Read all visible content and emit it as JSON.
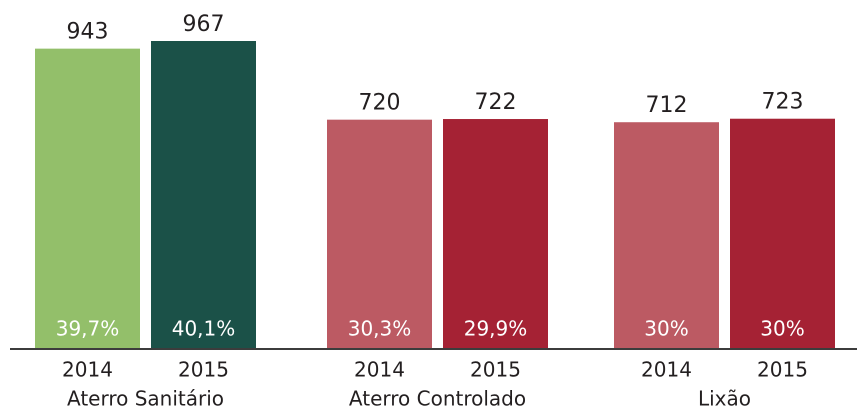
{
  "chart_data": {
    "type": "bar",
    "categories": [
      "Aterro Sanitário",
      "Aterro Controlado",
      "Lixão"
    ],
    "series": [
      {
        "name": "2014",
        "values": [
          943,
          720,
          712
        ],
        "colors": [
          "#93bf6a",
          "#bc5a63",
          "#bc5a63"
        ],
        "share_labels": [
          "39,7%",
          "30,3%",
          "30%"
        ]
      },
      {
        "name": "2015",
        "values": [
          967,
          722,
          723
        ],
        "colors": [
          "#1b5148",
          "#a52234",
          "#a52234"
        ],
        "share_labels": [
          "40,1%",
          "29,9%",
          "30%"
        ]
      }
    ]
  }
}
